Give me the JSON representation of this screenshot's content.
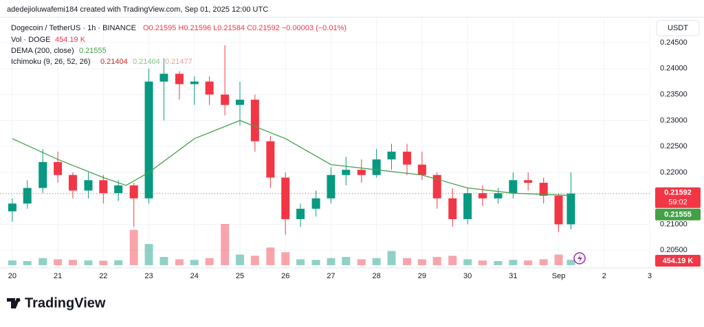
{
  "header": {
    "credit": "adedejioluwafemi184 created with TradingView.com, Sep 01, 2025 12:00 UTC",
    "symbol": "Dogecoin / TetherUS · 1h · BINANCE",
    "ohlc": "O0.21595 H0.21596 L0.21584 C0.21592 −0.00003 (−0.01%)",
    "volume_name": "Vol · DOGE",
    "volume_value": "454.19 K",
    "dema_name": "DEMA (200, close)",
    "dema_value": "0.21555",
    "ichimoku_name": "Ichimoku (9, 26, 52, 26)",
    "ichimoku_values": [
      "0.21404",
      "0.21404",
      "0.21477"
    ],
    "currency": "USDT",
    "countdown": "59:02",
    "brand": "TradingView"
  },
  "chart_data": {
    "type": "candlestick",
    "x": [
      0,
      0.33,
      0.67,
      1,
      1.33,
      1.67,
      2,
      2.33,
      2.67,
      3,
      3.33,
      3.67,
      4,
      4.33,
      4.67,
      5,
      5.33,
      5.67,
      6,
      6.33,
      6.67,
      7,
      7.33,
      7.67,
      8,
      8.33,
      8.67,
      9,
      9.33,
      9.67,
      10,
      10.33,
      10.67,
      11,
      11.33,
      11.67,
      12,
      12.27
    ],
    "open": [
      0.2125,
      0.214,
      0.217,
      0.222,
      0.2195,
      0.2165,
      0.2185,
      0.216,
      0.2175,
      0.215,
      0.2375,
      0.239,
      0.237,
      0.2375,
      0.235,
      0.233,
      0.234,
      0.226,
      0.219,
      0.211,
      0.213,
      0.215,
      0.2195,
      0.2205,
      0.2195,
      0.2225,
      0.224,
      0.2215,
      0.2195,
      0.215,
      0.211,
      0.216,
      0.215,
      0.216,
      0.2185,
      0.218,
      0.2155,
      0.21
    ],
    "high": [
      0.215,
      0.2185,
      0.2245,
      0.224,
      0.22,
      0.22,
      0.2195,
      0.2185,
      0.218,
      0.24,
      0.242,
      0.2395,
      0.2385,
      0.2385,
      0.2445,
      0.2375,
      0.235,
      0.227,
      0.22,
      0.214,
      0.2165,
      0.221,
      0.223,
      0.2225,
      0.2245,
      0.2255,
      0.2255,
      0.224,
      0.22,
      0.217,
      0.217,
      0.2175,
      0.217,
      0.22,
      0.22,
      0.219,
      0.216,
      0.22
    ],
    "low": [
      0.2105,
      0.213,
      0.216,
      0.218,
      0.215,
      0.215,
      0.214,
      0.2145,
      0.2095,
      0.214,
      0.23,
      0.234,
      0.233,
      0.233,
      0.231,
      0.229,
      0.224,
      0.217,
      0.208,
      0.2095,
      0.2115,
      0.214,
      0.2175,
      0.218,
      0.219,
      0.2205,
      0.2195,
      0.2185,
      0.213,
      0.2095,
      0.21,
      0.2135,
      0.214,
      0.215,
      0.2165,
      0.214,
      0.2085,
      0.209
    ],
    "close": [
      0.214,
      0.217,
      0.222,
      0.2195,
      0.2165,
      0.2185,
      0.216,
      0.2175,
      0.215,
      0.2375,
      0.239,
      0.237,
      0.2375,
      0.235,
      0.233,
      0.234,
      0.226,
      0.219,
      0.211,
      0.213,
      0.215,
      0.2195,
      0.2205,
      0.2195,
      0.2225,
      0.224,
      0.2215,
      0.2195,
      0.215,
      0.211,
      0.216,
      0.215,
      0.216,
      0.2185,
      0.218,
      0.2155,
      0.21,
      0.21592
    ],
    "close_label": "0.21592",
    "volume": [
      400,
      350,
      600,
      500,
      450,
      400,
      380,
      420,
      3000,
      1800,
      700,
      500,
      450,
      600,
      3500,
      900,
      800,
      1500,
      1100,
      500,
      450,
      600,
      700,
      500,
      600,
      1200,
      600,
      500,
      700,
      800,
      500,
      400,
      350,
      450,
      400,
      500,
      900,
      454.19
    ],
    "volume_label": "454.19 K",
    "dema": {
      "x": [
        0,
        1,
        2,
        2.5,
        3,
        4,
        5,
        6,
        7,
        8,
        9,
        10,
        11,
        12.27
      ],
      "values": [
        0.2265,
        0.2225,
        0.219,
        0.2175,
        0.22,
        0.2265,
        0.23,
        0.2265,
        0.2215,
        0.2205,
        0.2195,
        0.217,
        0.216,
        0.21555
      ],
      "color": "#43a047",
      "value_label": "0.21555"
    },
    "up_color": "#089981",
    "down_color": "#f23645",
    "xlim": [
      -0.27,
      14.0
    ],
    "ylim": [
      0.2016,
      0.2499
    ],
    "xticks": [
      {
        "value": 0,
        "label": "20"
      },
      {
        "value": 1,
        "label": "21"
      },
      {
        "value": 2,
        "label": "22"
      },
      {
        "value": 3,
        "label": "23"
      },
      {
        "value": 4,
        "label": "24"
      },
      {
        "value": 5,
        "label": "25"
      },
      {
        "value": 6,
        "label": "26"
      },
      {
        "value": 7,
        "label": "27"
      },
      {
        "value": 8,
        "label": "28"
      },
      {
        "value": 9,
        "label": "29"
      },
      {
        "value": 10,
        "label": "30"
      },
      {
        "value": 11,
        "label": "31"
      },
      {
        "value": 12,
        "label": "Sep"
      },
      {
        "value": 13,
        "label": "2"
      },
      {
        "value": 14,
        "label": "3"
      }
    ],
    "yticks": [
      {
        "value": 0.205,
        "label": "0.20500"
      },
      {
        "value": 0.21,
        "label": "0.21000"
      },
      {
        "value": 0.215,
        "label": "0.21500"
      },
      {
        "value": 0.22,
        "label": "0.22000"
      },
      {
        "value": 0.225,
        "label": "0.22500"
      },
      {
        "value": 0.23,
        "label": "0.23000"
      },
      {
        "value": 0.235,
        "label": "0.23500"
      },
      {
        "value": 0.24,
        "label": "0.24000"
      },
      {
        "value": 0.245,
        "label": "0.24500"
      }
    ],
    "grid": true
  }
}
